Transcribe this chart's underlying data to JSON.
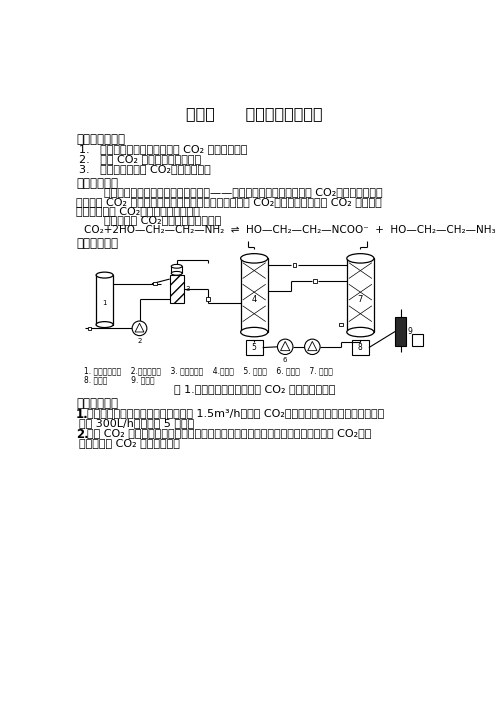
{
  "title": "实验十      二氧化碳吸收实验",
  "bg_color": "#ffffff",
  "text_color": "#000000",
  "section1_header": "一、实验目的：",
  "section1_items": [
    "1.   掌握有机胺吸收分离烟气中 CO₂ 的工艺方法；",
    "2.   了解 CO₂ 分析仪的使用方法；",
    "3.   掌握工艺条件对 CO₂吸收的影响。"
  ],
  "section2_header": "二、实验原理",
  "section2_body1": "        本实验利用具有弱碱性的有机化合物——乙醇胺的水溶液吸收烟气中 CO₂。该方法是吸收",
  "section2_body2": "烟道气中 CO₂ 的一种方法。乙醇胺溶液能吸收酸性气体 CO₂，并且吸收后的富 CO₂ 溶液经加",
  "section2_body3": "热可以释放出 CO₂实现吸收剂的再生。",
  "section2_body4": "        乙醇胺吸收 CO₂的反应方程式如下：",
  "section2_equation": "CO₂+2HO—CH₂—CH₂—NH₂  ⇌  HO—CH₂—CH₂—NCOO⁻  +  HO—CH₂—CH₂—NH₃⁺",
  "section3_header": "三、实验装置",
  "figure_caption": "图 1.乙醇胺溶液吸收及解吸 CO₂ 实验装置示意图",
  "figure_legend": "1. 二氧化碳钢瓶    2.空气压缩机    3. 气体混合罐    4.吸收塔    5. 富液罐    6. 循液泵    7. 再生塔",
  "figure_legend2": "8. 贫液罐          9. 分液器",
  "section4_header": "四、实验步骤",
  "step1_body": "打开空气泵，调节气体流量（最大为 1.5m³/h）；将 CO₂钢瓶打开，同时调节气体流量（最",
  "step1_body2": "大为 300L/h），稳定 5 分钟。",
  "step2_body": "打开 CO₂ 分析仪，自检完毕后，将吸收塔出口连接到分析仪上，待烟气分析仪上 CO₂读数",
  "step2_body2": "稳定后记录 CO₂ 的初始含量。"
}
